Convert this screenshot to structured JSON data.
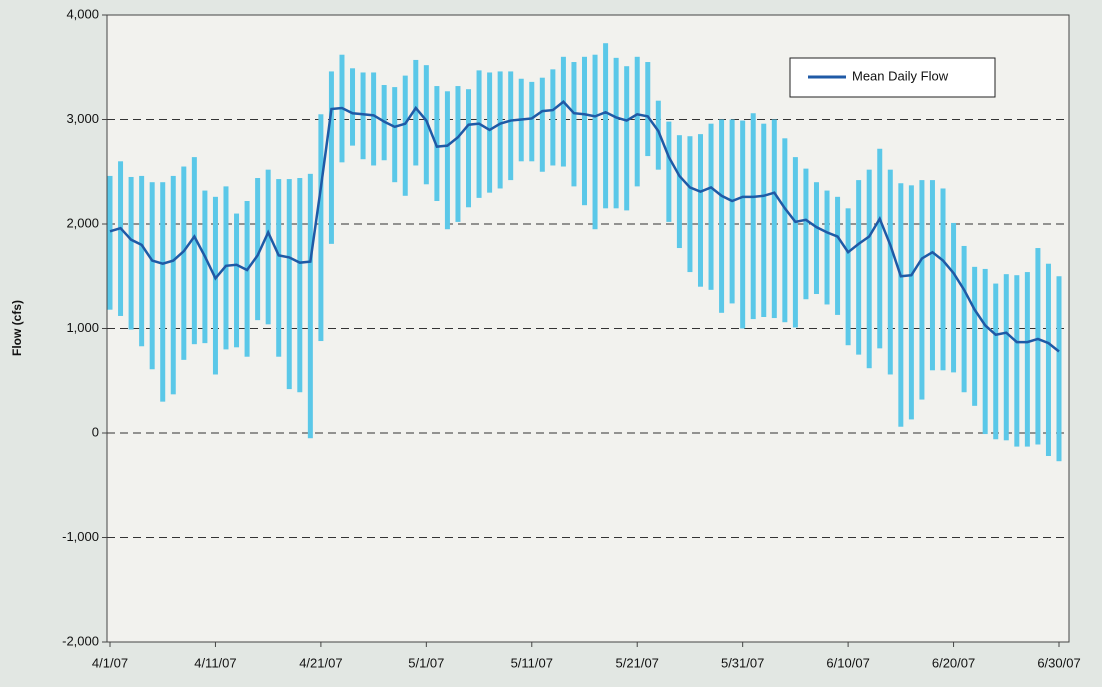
{
  "chart_data": {
    "type": "range_bar_line",
    "ylabel": "Flow (cfs)",
    "x": [
      "4/1/07",
      "4/2/07",
      "4/3/07",
      "4/4/07",
      "4/5/07",
      "4/6/07",
      "4/7/07",
      "4/8/07",
      "4/9/07",
      "4/10/07",
      "4/11/07",
      "4/12/07",
      "4/13/07",
      "4/14/07",
      "4/15/07",
      "4/16/07",
      "4/17/07",
      "4/18/07",
      "4/19/07",
      "4/20/07",
      "4/21/07",
      "4/22/07",
      "4/23/07",
      "4/24/07",
      "4/25/07",
      "4/26/07",
      "4/27/07",
      "4/28/07",
      "4/29/07",
      "4/30/07",
      "5/1/07",
      "5/2/07",
      "5/3/07",
      "5/4/07",
      "5/5/07",
      "5/6/07",
      "5/7/07",
      "5/8/07",
      "5/9/07",
      "5/10/07",
      "5/11/07",
      "5/12/07",
      "5/13/07",
      "5/14/07",
      "5/15/07",
      "5/16/07",
      "5/17/07",
      "5/18/07",
      "5/19/07",
      "5/20/07",
      "5/21/07",
      "5/22/07",
      "5/23/07",
      "5/24/07",
      "5/25/07",
      "5/26/07",
      "5/27/07",
      "5/28/07",
      "5/29/07",
      "5/30/07",
      "5/31/07",
      "6/1/07",
      "6/2/07",
      "6/3/07",
      "6/4/07",
      "6/5/07",
      "6/6/07",
      "6/7/07",
      "6/8/07",
      "6/9/07",
      "6/10/07",
      "6/11/07",
      "6/12/07",
      "6/13/07",
      "6/14/07",
      "6/15/07",
      "6/16/07",
      "6/17/07",
      "6/18/07",
      "6/19/07",
      "6/20/07",
      "6/21/07",
      "6/22/07",
      "6/23/07",
      "6/24/07",
      "6/25/07",
      "6/26/07",
      "6/27/07",
      "6/28/07",
      "6/29/07",
      "6/30/07"
    ],
    "series": [
      {
        "name": "Mean Daily Flow",
        "color": "#1f5aa6",
        "values": [
          1930,
          1960,
          1850,
          1800,
          1650,
          1620,
          1650,
          1740,
          1880,
          1690,
          1480,
          1600,
          1610,
          1560,
          1700,
          1920,
          1700,
          1680,
          1630,
          1640,
          2350,
          3100,
          3110,
          3060,
          3050,
          3040,
          2980,
          2930,
          2960,
          3110,
          2990,
          2740,
          2750,
          2830,
          2950,
          2960,
          2900,
          2960,
          2990,
          3000,
          3010,
          3080,
          3090,
          3170,
          3060,
          3050,
          3030,
          3070,
          3020,
          2990,
          3050,
          3030,
          2890,
          2640,
          2460,
          2350,
          2310,
          2350,
          2270,
          2220,
          2260,
          2260,
          2270,
          2300,
          2150,
          2020,
          2040,
          1970,
          1920,
          1880,
          1730,
          1810,
          1880,
          2050,
          1800,
          1500,
          1510,
          1670,
          1730,
          1650,
          1530,
          1370,
          1180,
          1030,
          940,
          960,
          870,
          870,
          900,
          860,
          780
        ]
      }
    ],
    "range": {
      "color": "#5bc8e8",
      "high": [
        2460,
        2600,
        2450,
        2460,
        2400,
        2400,
        2460,
        2550,
        2640,
        2320,
        2260,
        2360,
        2100,
        2220,
        2440,
        2520,
        2430,
        2430,
        2440,
        2480,
        3050,
        3460,
        3620,
        3490,
        3450,
        3450,
        3330,
        3310,
        3420,
        3570,
        3520,
        3320,
        3270,
        3320,
        3290,
        3470,
        3450,
        3460,
        3460,
        3390,
        3360,
        3400,
        3480,
        3600,
        3550,
        3600,
        3620,
        3730,
        3590,
        3510,
        3600,
        3550,
        3180,
        2980,
        2850,
        2840,
        2860,
        2960,
        3000,
        3000,
        2990,
        3060,
        2960,
        3000,
        2820,
        2640,
        2530,
        2400,
        2320,
        2260,
        2150,
        2420,
        2520,
        2720,
        2520,
        2390,
        2370,
        2420,
        2420,
        2340,
        2010,
        1790,
        1590,
        1570,
        1430,
        1520,
        1510,
        1540,
        1770,
        1620,
        1500
      ],
      "low": [
        1180,
        1120,
        990,
        830,
        610,
        300,
        370,
        700,
        850,
        860,
        560,
        800,
        820,
        730,
        1080,
        1040,
        730,
        420,
        390,
        -50,
        880,
        1810,
        2590,
        2750,
        2620,
        2560,
        2610,
        2400,
        2270,
        2560,
        2380,
        2220,
        1950,
        2020,
        2160,
        2250,
        2300,
        2340,
        2420,
        2600,
        2600,
        2500,
        2560,
        2550,
        2360,
        2180,
        1950,
        2150,
        2150,
        2130,
        2360,
        2650,
        2520,
        2020,
        1770,
        1540,
        1400,
        1370,
        1150,
        1240,
        1000,
        1090,
        1110,
        1100,
        1060,
        1010,
        1280,
        1330,
        1230,
        1130,
        840,
        750,
        620,
        810,
        560,
        60,
        130,
        320,
        600,
        600,
        580,
        390,
        260,
        -10,
        -60,
        -70,
        -130,
        -130,
        -110,
        -220,
        -270
      ]
    },
    "ylim": [
      -2000,
      4000
    ],
    "yticks": [
      {
        "value": -2000,
        "label": "-2,000"
      },
      {
        "value": -1000,
        "label": "-1,000"
      },
      0,
      {
        "value": 1000,
        "label": "1,000"
      },
      {
        "value": 2000,
        "label": "2,000"
      },
      {
        "value": 3000,
        "label": "3,000"
      },
      {
        "value": 4000,
        "label": "4,000"
      }
    ],
    "xticks": [
      "4/1/07",
      "4/11/07",
      "4/21/07",
      "5/1/07",
      "5/11/07",
      "5/21/07",
      "5/31/07",
      "6/10/07",
      "6/20/07",
      "6/30/07"
    ],
    "grid": true,
    "legend": "upper right"
  }
}
